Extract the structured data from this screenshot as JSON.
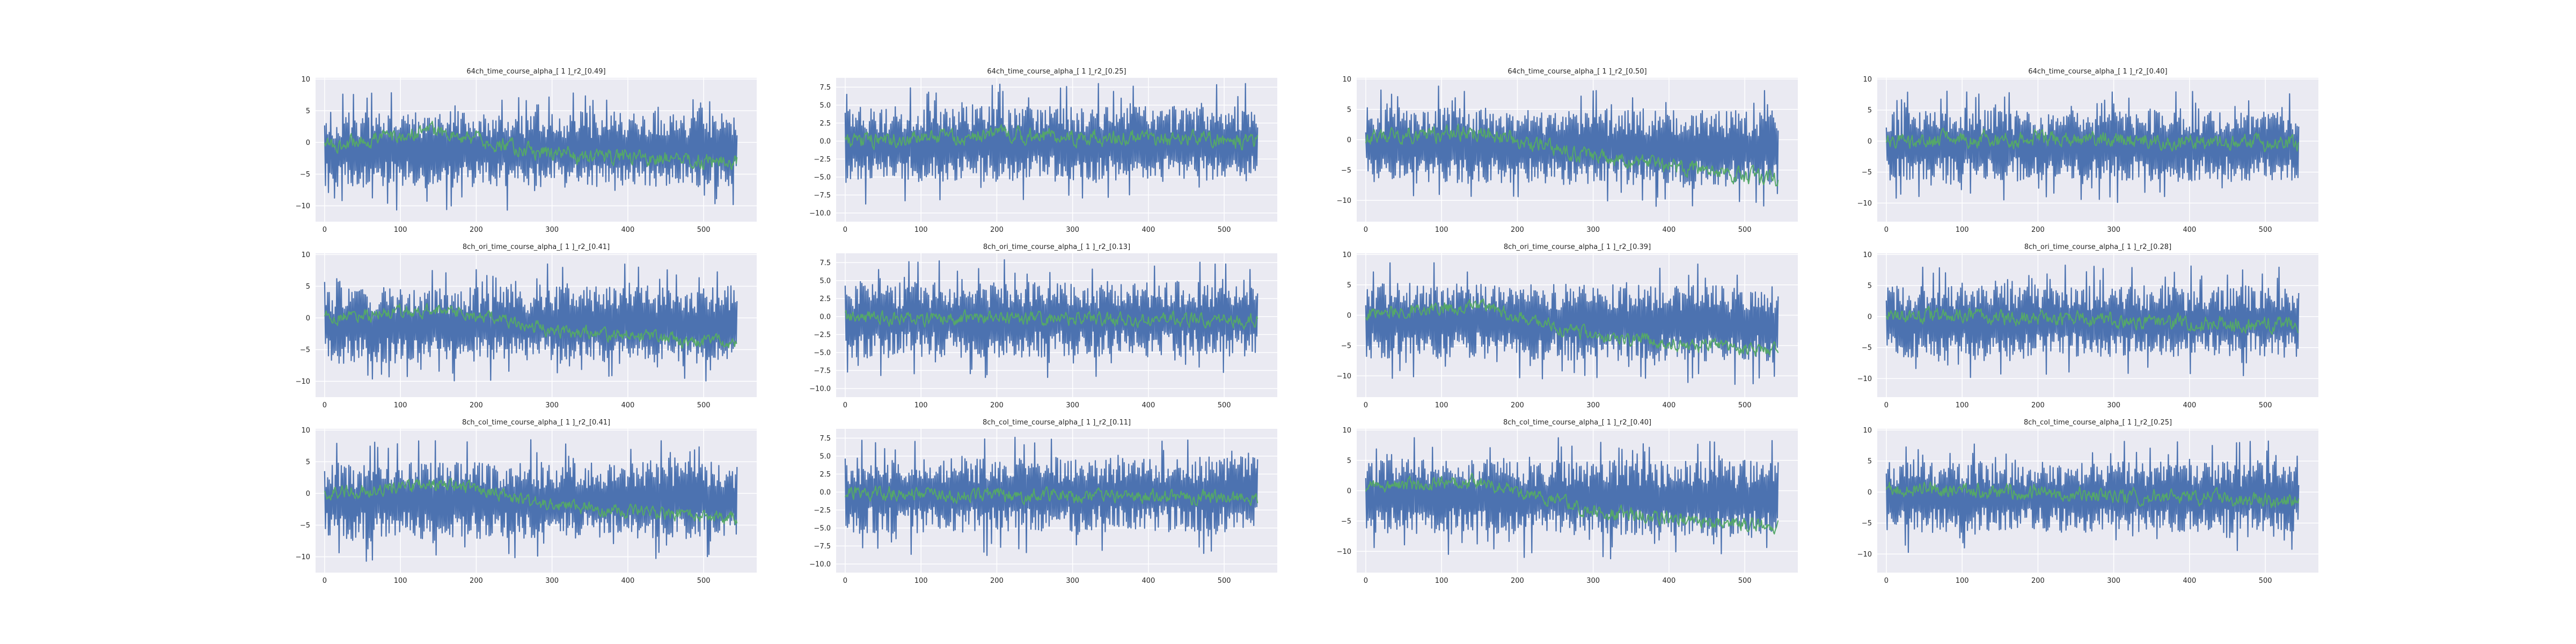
{
  "figure": {
    "background": "#ffffff",
    "axes_background": "#eaeaf2",
    "grid_color": "#ffffff",
    "style": "seaborn-darkgrid",
    "series_colors": [
      "#4c72b0",
      "#55a868"
    ]
  },
  "chart_data": [
    {
      "type": "line",
      "title": "64ch_time_course_alpha_[ 1 ]_r2_[0.49]",
      "xlim": [
        -12,
        570
      ],
      "ylim": [
        -12.5,
        10.2
      ],
      "xticks": [
        0,
        100,
        200,
        300,
        400,
        500
      ],
      "yticks": [
        -10,
        -5,
        0,
        5,
        10
      ],
      "ytick_labels": [
        "−10",
        "−5",
        "0",
        "5",
        "10"
      ],
      "n_points": 545,
      "seed": 101,
      "series": [
        {
          "color": "#4c72b0",
          "amplitude": 4.8,
          "baseline": [
            [
              0,
              -1.2
            ],
            [
              544,
              -1.0
            ]
          ]
        },
        {
          "color": "#55a868",
          "amplitude": 1.5,
          "baseline": [
            [
              0,
              -0.3
            ],
            [
              150,
              1.8
            ],
            [
              300,
              -2.0
            ],
            [
              544,
              -3.0
            ]
          ]
        }
      ]
    },
    {
      "type": "line",
      "title": "64ch_time_course_alpha_[ 1 ]_r2_[0.25]",
      "xlim": [
        -12,
        570
      ],
      "ylim": [
        -11.2,
        8.8
      ],
      "xticks": [
        0,
        100,
        200,
        300,
        400,
        500
      ],
      "yticks": [
        -10,
        -7.5,
        -5,
        -2.5,
        0,
        2.5,
        5,
        7.5
      ],
      "ytick_labels": [
        "−10.0",
        "−7.5",
        "−5.0",
        "−2.5",
        "0.0",
        "2.5",
        "5.0",
        "7.5"
      ],
      "n_points": 545,
      "seed": 202,
      "series": [
        {
          "color": "#4c72b0",
          "amplitude": 4.2,
          "baseline": [
            [
              0,
              -0.5
            ],
            [
              544,
              -0.3
            ]
          ]
        },
        {
          "color": "#55a868",
          "amplitude": 1.4,
          "baseline": [
            [
              0,
              0.0
            ],
            [
              200,
              0.8
            ],
            [
              400,
              0.4
            ],
            [
              544,
              0.0
            ]
          ]
        }
      ]
    },
    {
      "type": "line",
      "title": "64ch_time_course_alpha_[ 1 ]_r2_[0.50]",
      "xlim": [
        -12,
        570
      ],
      "ylim": [
        -13.5,
        10.2
      ],
      "xticks": [
        0,
        100,
        200,
        300,
        400,
        500
      ],
      "yticks": [
        -10,
        -5,
        0,
        5,
        10
      ],
      "ytick_labels": [
        "−10",
        "−5",
        "0",
        "5",
        "10"
      ],
      "n_points": 545,
      "seed": 303,
      "series": [
        {
          "color": "#4c72b0",
          "amplitude": 5.0,
          "baseline": [
            [
              0,
              -0.8
            ],
            [
              544,
              -1.5
            ]
          ]
        },
        {
          "color": "#55a868",
          "amplitude": 1.6,
          "baseline": [
            [
              0,
              0.5
            ],
            [
              150,
              1.2
            ],
            [
              300,
              -3.0
            ],
            [
              544,
              -6.5
            ]
          ]
        }
      ]
    },
    {
      "type": "line",
      "title": "64ch_time_course_alpha_[ 1 ]_r2_[0.40]",
      "xlim": [
        -12,
        570
      ],
      "ylim": [
        -13.0,
        10.2
      ],
      "xticks": [
        0,
        100,
        200,
        300,
        400,
        500
      ],
      "yticks": [
        -10,
        -5,
        0,
        5,
        10
      ],
      "ytick_labels": [
        "−10",
        "−5",
        "0",
        "5",
        "10"
      ],
      "n_points": 545,
      "seed": 404,
      "series": [
        {
          "color": "#4c72b0",
          "amplitude": 4.6,
          "baseline": [
            [
              0,
              -0.8
            ],
            [
              544,
              -0.8
            ]
          ]
        },
        {
          "color": "#55a868",
          "amplitude": 1.6,
          "baseline": [
            [
              0,
              0.0
            ],
            [
              272,
              0.4
            ],
            [
              544,
              -0.5
            ]
          ]
        }
      ]
    },
    {
      "type": "line",
      "title": "8ch_ori_time_course_alpha_[ 1 ]_r2_[0.41]",
      "xlim": [
        -12,
        570
      ],
      "ylim": [
        -12.5,
        10.2
      ],
      "xticks": [
        0,
        100,
        200,
        300,
        400,
        500
      ],
      "yticks": [
        -10,
        -5,
        0,
        5,
        10
      ],
      "ytick_labels": [
        "−10",
        "−5",
        "0",
        "5",
        "10"
      ],
      "n_points": 545,
      "seed": 505,
      "series": [
        {
          "color": "#4c72b0",
          "amplitude": 4.8,
          "baseline": [
            [
              0,
              -1.2
            ],
            [
              544,
              -1.0
            ]
          ]
        },
        {
          "color": "#55a868",
          "amplitude": 1.3,
          "baseline": [
            [
              0,
              0.0
            ],
            [
              150,
              1.5
            ],
            [
              300,
              -2.0
            ],
            [
              544,
              -4.0
            ]
          ]
        }
      ]
    },
    {
      "type": "line",
      "title": "8ch_ori_time_course_alpha_[ 1 ]_r2_[0.13]",
      "xlim": [
        -12,
        570
      ],
      "ylim": [
        -11.2,
        8.8
      ],
      "xticks": [
        0,
        100,
        200,
        300,
        400,
        500
      ],
      "yticks": [
        -10,
        -7.5,
        -5,
        -2.5,
        0,
        2.5,
        5,
        7.5
      ],
      "ytick_labels": [
        "−10.0",
        "−7.5",
        "−5.0",
        "−2.5",
        "0.0",
        "2.5",
        "5.0",
        "7.5"
      ],
      "n_points": 545,
      "seed": 606,
      "series": [
        {
          "color": "#4c72b0",
          "amplitude": 4.2,
          "baseline": [
            [
              0,
              -0.5
            ],
            [
              544,
              -0.3
            ]
          ]
        },
        {
          "color": "#55a868",
          "amplitude": 1.2,
          "baseline": [
            [
              0,
              -0.2
            ],
            [
              272,
              -0.3
            ],
            [
              544,
              -0.5
            ]
          ]
        }
      ]
    },
    {
      "type": "line",
      "title": "8ch_ori_time_course_alpha_[ 1 ]_r2_[0.39]",
      "xlim": [
        -12,
        570
      ],
      "ylim": [
        -13.5,
        10.2
      ],
      "xticks": [
        0,
        100,
        200,
        300,
        400,
        500
      ],
      "yticks": [
        -10,
        -5,
        0,
        5,
        10
      ],
      "ytick_labels": [
        "−10",
        "−5",
        "0",
        "5",
        "10"
      ],
      "n_points": 545,
      "seed": 707,
      "series": [
        {
          "color": "#4c72b0",
          "amplitude": 5.0,
          "baseline": [
            [
              0,
              -0.8
            ],
            [
              544,
              -1.5
            ]
          ]
        },
        {
          "color": "#55a868",
          "amplitude": 1.4,
          "baseline": [
            [
              0,
              0.5
            ],
            [
              150,
              1.5
            ],
            [
              300,
              -3.5
            ],
            [
              544,
              -6.0
            ]
          ]
        }
      ]
    },
    {
      "type": "line",
      "title": "8ch_ori_time_course_alpha_[ 1 ]_r2_[0.28]",
      "xlim": [
        -12,
        570
      ],
      "ylim": [
        -13.0,
        10.2
      ],
      "xticks": [
        0,
        100,
        200,
        300,
        400,
        500
      ],
      "yticks": [
        -10,
        -5,
        0,
        5,
        10
      ],
      "ytick_labels": [
        "−10",
        "−5",
        "0",
        "5",
        "10"
      ],
      "n_points": 545,
      "seed": 808,
      "series": [
        {
          "color": "#4c72b0",
          "amplitude": 4.6,
          "baseline": [
            [
              0,
              -0.8
            ],
            [
              544,
              -0.8
            ]
          ]
        },
        {
          "color": "#55a868",
          "amplitude": 1.5,
          "baseline": [
            [
              0,
              0.5
            ],
            [
              272,
              -0.5
            ],
            [
              544,
              -1.5
            ]
          ]
        }
      ]
    },
    {
      "type": "line",
      "title": "8ch_col_time_course_alpha_[ 1 ]_r2_[0.41]",
      "xlim": [
        -12,
        570
      ],
      "ylim": [
        -12.5,
        10.2
      ],
      "xticks": [
        0,
        100,
        200,
        300,
        400,
        500
      ],
      "yticks": [
        -10,
        -5,
        0,
        5,
        10
      ],
      "ytick_labels": [
        "−10",
        "−5",
        "0",
        "5",
        "10"
      ],
      "n_points": 545,
      "seed": 909,
      "series": [
        {
          "color": "#4c72b0",
          "amplitude": 4.8,
          "baseline": [
            [
              0,
              -1.2
            ],
            [
              544,
              -1.0
            ]
          ]
        },
        {
          "color": "#55a868",
          "amplitude": 1.3,
          "baseline": [
            [
              0,
              0.0
            ],
            [
              150,
              1.5
            ],
            [
              300,
              -2.0
            ],
            [
              544,
              -4.0
            ]
          ]
        }
      ]
    },
    {
      "type": "line",
      "title": "8ch_col_time_course_alpha_[ 1 ]_r2_[0.11]",
      "xlim": [
        -12,
        570
      ],
      "ylim": [
        -11.2,
        8.8
      ],
      "xticks": [
        0,
        100,
        200,
        300,
        400,
        500
      ],
      "yticks": [
        -10,
        -7.5,
        -5,
        -2.5,
        0,
        2.5,
        5,
        7.5
      ],
      "ytick_labels": [
        "−10.0",
        "−7.5",
        "−5.0",
        "−2.5",
        "0.0",
        "2.5",
        "5.0",
        "7.5"
      ],
      "n_points": 545,
      "seed": 1010,
      "series": [
        {
          "color": "#4c72b0",
          "amplitude": 4.2,
          "baseline": [
            [
              0,
              -0.5
            ],
            [
              544,
              -0.3
            ]
          ]
        },
        {
          "color": "#55a868",
          "amplitude": 1.2,
          "baseline": [
            [
              0,
              0.0
            ],
            [
              272,
              -0.5
            ],
            [
              544,
              -0.8
            ]
          ]
        }
      ]
    },
    {
      "type": "line",
      "title": "8ch_col_time_course_alpha_[ 1 ]_r2_[0.40]",
      "xlim": [
        -12,
        570
      ],
      "ylim": [
        -13.5,
        10.2
      ],
      "xticks": [
        0,
        100,
        200,
        300,
        400,
        500
      ],
      "yticks": [
        -10,
        -5,
        0,
        5,
        10
      ],
      "ytick_labels": [
        "−10",
        "−5",
        "0",
        "5",
        "10"
      ],
      "n_points": 545,
      "seed": 1111,
      "series": [
        {
          "color": "#4c72b0",
          "amplitude": 5.0,
          "baseline": [
            [
              0,
              -0.8
            ],
            [
              544,
              -1.5
            ]
          ]
        },
        {
          "color": "#55a868",
          "amplitude": 1.4,
          "baseline": [
            [
              0,
              0.5
            ],
            [
              150,
              1.5
            ],
            [
              300,
              -3.5
            ],
            [
              544,
              -6.0
            ]
          ]
        }
      ]
    },
    {
      "type": "line",
      "title": "8ch_col_time_course_alpha_[ 1 ]_r2_[0.25]",
      "xlim": [
        -12,
        570
      ],
      "ylim": [
        -13.0,
        10.2
      ],
      "xticks": [
        0,
        100,
        200,
        300,
        400,
        500
      ],
      "yticks": [
        -10,
        -5,
        0,
        5,
        10
      ],
      "ytick_labels": [
        "−10",
        "−5",
        "0",
        "5",
        "10"
      ],
      "n_points": 545,
      "seed": 1212,
      "series": [
        {
          "color": "#4c72b0",
          "amplitude": 4.6,
          "baseline": [
            [
              0,
              -0.8
            ],
            [
              544,
              -0.8
            ]
          ]
        },
        {
          "color": "#55a868",
          "amplitude": 1.5,
          "baseline": [
            [
              0,
              0.5
            ],
            [
              272,
              -0.5
            ],
            [
              544,
              -1.5
            ]
          ]
        }
      ]
    }
  ]
}
